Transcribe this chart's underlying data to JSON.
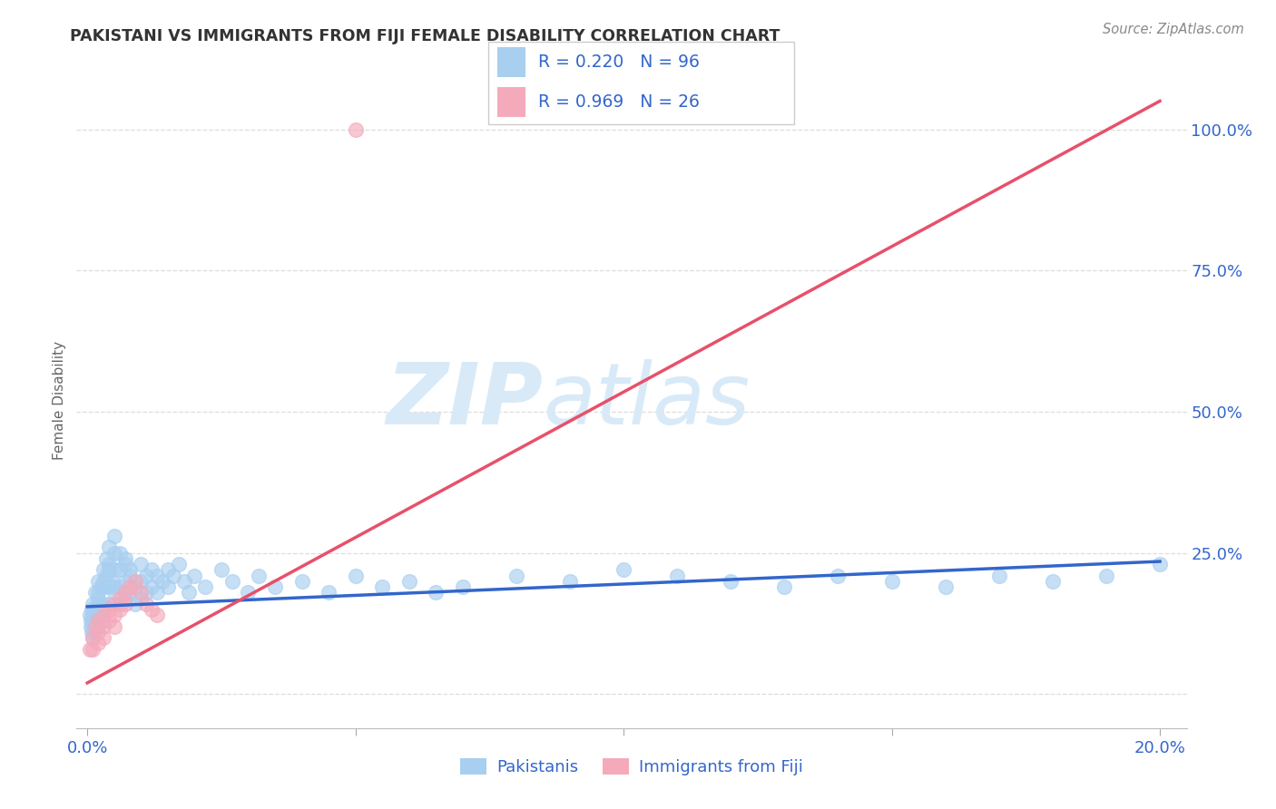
{
  "title": "PAKISTANI VS IMMIGRANTS FROM FIJI FEMALE DISABILITY CORRELATION CHART",
  "source": "Source: ZipAtlas.com",
  "xlabel_pakistani": "Pakistanis",
  "xlabel_fiji": "Immigrants from Fiji",
  "ylabel": "Female Disability",
  "blue_color": "#A8CFF0",
  "pink_color": "#F4AABB",
  "blue_line_color": "#3366CC",
  "pink_line_color": "#E8506A",
  "legend_text_color": "#3366CC",
  "axis_text_color": "#3366CC",
  "watermark_color": "#D8EAF8",
  "title_color": "#333333",
  "source_color": "#888888",
  "grid_color": "#DDDDDD",
  "R_pakistani": 0.22,
  "N_pakistani": 96,
  "R_fiji": 0.969,
  "N_fiji": 26,
  "pak_x": [
    0.0005,
    0.0006,
    0.0007,
    0.0008,
    0.0009,
    0.001,
    0.001,
    0.001,
    0.001,
    0.001,
    0.0015,
    0.0015,
    0.0015,
    0.002,
    0.002,
    0.002,
    0.002,
    0.002,
    0.002,
    0.0025,
    0.0025,
    0.0025,
    0.003,
    0.003,
    0.003,
    0.003,
    0.003,
    0.0035,
    0.0035,
    0.004,
    0.004,
    0.004,
    0.004,
    0.004,
    0.0045,
    0.005,
    0.005,
    0.005,
    0.005,
    0.005,
    0.006,
    0.006,
    0.006,
    0.006,
    0.007,
    0.007,
    0.007,
    0.007,
    0.008,
    0.008,
    0.008,
    0.009,
    0.009,
    0.01,
    0.01,
    0.01,
    0.011,
    0.011,
    0.012,
    0.012,
    0.013,
    0.013,
    0.014,
    0.015,
    0.015,
    0.016,
    0.017,
    0.018,
    0.019,
    0.02,
    0.022,
    0.025,
    0.027,
    0.03,
    0.032,
    0.035,
    0.04,
    0.045,
    0.05,
    0.055,
    0.06,
    0.065,
    0.07,
    0.08,
    0.09,
    0.1,
    0.11,
    0.12,
    0.13,
    0.14,
    0.15,
    0.16,
    0.17,
    0.18,
    0.19,
    0.2
  ],
  "pak_y": [
    0.14,
    0.12,
    0.13,
    0.11,
    0.15,
    0.16,
    0.13,
    0.1,
    0.14,
    0.12,
    0.18,
    0.15,
    0.13,
    0.2,
    0.17,
    0.14,
    0.12,
    0.16,
    0.18,
    0.19,
    0.16,
    0.14,
    0.22,
    0.19,
    0.16,
    0.13,
    0.2,
    0.24,
    0.21,
    0.26,
    0.23,
    0.19,
    0.16,
    0.22,
    0.2,
    0.18,
    0.28,
    0.25,
    0.22,
    0.19,
    0.25,
    0.22,
    0.19,
    0.16,
    0.23,
    0.2,
    0.17,
    0.24,
    0.21,
    0.18,
    0.22,
    0.19,
    0.16,
    0.2,
    0.17,
    0.23,
    0.21,
    0.18,
    0.22,
    0.19,
    0.21,
    0.18,
    0.2,
    0.22,
    0.19,
    0.21,
    0.23,
    0.2,
    0.18,
    0.21,
    0.19,
    0.22,
    0.2,
    0.18,
    0.21,
    0.19,
    0.2,
    0.18,
    0.21,
    0.19,
    0.2,
    0.18,
    0.19,
    0.21,
    0.2,
    0.22,
    0.21,
    0.2,
    0.19,
    0.21,
    0.2,
    0.19,
    0.21,
    0.2,
    0.21,
    0.23
  ],
  "fij_x": [
    0.0005,
    0.001,
    0.001,
    0.0015,
    0.002,
    0.002,
    0.002,
    0.003,
    0.003,
    0.003,
    0.004,
    0.004,
    0.005,
    0.005,
    0.005,
    0.006,
    0.006,
    0.007,
    0.007,
    0.008,
    0.009,
    0.01,
    0.011,
    0.012,
    0.013,
    0.05
  ],
  "fij_y": [
    0.08,
    0.1,
    0.08,
    0.12,
    0.13,
    0.11,
    0.09,
    0.14,
    0.12,
    0.1,
    0.15,
    0.13,
    0.16,
    0.14,
    0.12,
    0.17,
    0.15,
    0.18,
    0.16,
    0.19,
    0.2,
    0.18,
    0.16,
    0.15,
    0.14,
    1.0
  ],
  "pak_line_x": [
    0.0,
    0.2
  ],
  "pak_line_y": [
    0.155,
    0.235
  ],
  "fij_line_x": [
    0.0,
    0.2
  ],
  "fij_line_y": [
    0.02,
    1.05
  ],
  "xlim": [
    -0.002,
    0.205
  ],
  "ylim": [
    -0.06,
    1.1
  ],
  "xticks": [
    0.0,
    0.05,
    0.1,
    0.15,
    0.2
  ],
  "xtick_labels": [
    "0.0%",
    "",
    "",
    "",
    "20.0%"
  ],
  "yticks": [
    0.0,
    0.25,
    0.5,
    0.75,
    1.0
  ],
  "ytick_labels_right": [
    "",
    "25.0%",
    "50.0%",
    "75.0%",
    "100.0%"
  ]
}
